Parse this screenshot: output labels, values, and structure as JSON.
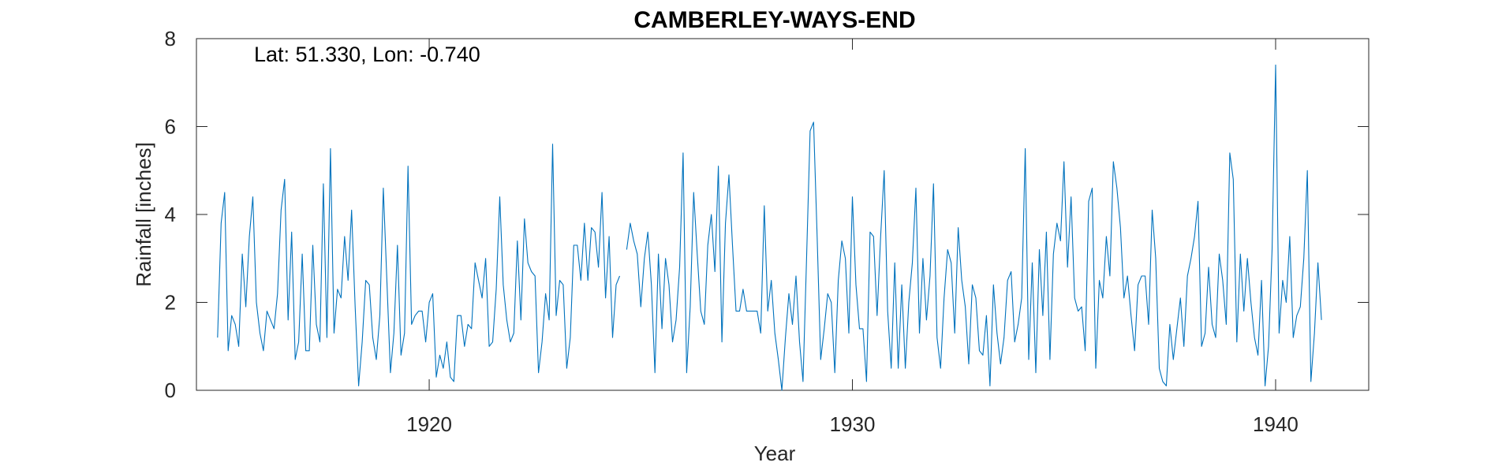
{
  "chart_data": {
    "type": "line",
    "title": "CAMBERLEY-WAYS-END",
    "xlabel": "Year",
    "ylabel": "Rainfall [inches]",
    "annotation": "Lat: 51.330, Lon: -0.740",
    "xlim": [
      1914.5,
      1942.2
    ],
    "ylim": [
      0,
      8
    ],
    "xticks": [
      1920,
      1930,
      1940
    ],
    "yticks": [
      0,
      2,
      4,
      6,
      8
    ],
    "grid": false,
    "line_color": "#0072BD",
    "x_start_year": 1915,
    "x_step_months": 1,
    "series": [
      {
        "values": [
          1.2,
          3.8,
          4.5,
          0.9,
          1.7,
          1.5,
          1.0,
          3.1,
          1.9,
          3.5,
          4.4,
          2.0,
          1.3,
          0.9,
          1.8,
          1.6,
          1.4,
          2.2,
          4.1,
          4.8,
          1.6,
          3.6,
          0.7,
          1.1,
          3.1,
          0.9,
          0.9,
          3.3,
          1.5,
          1.1,
          4.7,
          1.2,
          5.5,
          1.3,
          2.3,
          2.1,
          3.5,
          2.5,
          4.1,
          1.9,
          0.1,
          1.1,
          2.5,
          2.4,
          1.2,
          0.7,
          1.7,
          4.6,
          2.5,
          0.4,
          1.3,
          3.3,
          0.8,
          1.3,
          5.1,
          1.5,
          1.7,
          1.8,
          1.8,
          1.1,
          2.0,
          2.2,
          0.3,
          0.8,
          0.5,
          1.1,
          0.3,
          0.2,
          1.7,
          1.7,
          1.0,
          1.5,
          1.4,
          2.9,
          2.5,
          2.1,
          3.0,
          1.0,
          1.1,
          2.3,
          4.4,
          2.4,
          1.6,
          1.1,
          1.3,
          3.4,
          1.6,
          3.9,
          2.9,
          2.7,
          2.6,
          0.4,
          1.1,
          2.2,
          1.6,
          5.6,
          1.7,
          2.5,
          2.4,
          0.5,
          1.2,
          3.3,
          3.3,
          2.5,
          3.8,
          2.5,
          3.7,
          3.6,
          2.8,
          4.5,
          2.1,
          3.5,
          1.2,
          2.4,
          2.6,
          null,
          3.2,
          3.8,
          3.4,
          3.1,
          1.9,
          3.0,
          3.6,
          2.4,
          0.4,
          3.1,
          1.4,
          3.0,
          2.4,
          1.1,
          1.6,
          2.8,
          5.4,
          0.4,
          1.9,
          4.5,
          3.1,
          1.8,
          1.5,
          3.3,
          4.0,
          2.7,
          5.1,
          1.1,
          3.8,
          4.9,
          3.3,
          1.8,
          1.8,
          2.3,
          1.8,
          1.8,
          1.8,
          1.8,
          1.3,
          4.2,
          1.8,
          2.5,
          1.3,
          0.7,
          0.0,
          1.2,
          2.2,
          1.5,
          2.6,
          1.1,
          0.2,
          3.0,
          5.9,
          6.1,
          3.5,
          0.7,
          1.4,
          2.2,
          2.0,
          0.4,
          2.5,
          3.4,
          3.0,
          1.3,
          4.4,
          2.4,
          1.4,
          1.4,
          0.2,
          3.6,
          3.5,
          1.7,
          3.5,
          5.0,
          1.8,
          0.5,
          2.9,
          0.5,
          2.4,
          0.5,
          2.0,
          2.9,
          4.6,
          1.3,
          3.0,
          1.6,
          2.6,
          4.7,
          1.2,
          0.5,
          2.1,
          3.2,
          2.9,
          1.3,
          3.7,
          2.5,
          1.9,
          0.6,
          2.4,
          2.1,
          0.9,
          0.8,
          1.7,
          0.1,
          2.4,
          1.3,
          0.6,
          1.2,
          2.5,
          2.7,
          1.1,
          1.5,
          2.1,
          5.5,
          0.7,
          2.9,
          0.4,
          3.2,
          1.7,
          3.6,
          0.7,
          3.1,
          3.8,
          3.4,
          5.2,
          2.8,
          4.4,
          2.1,
          1.8,
          1.9,
          0.9,
          4.3,
          4.6,
          0.5,
          2.5,
          2.1,
          3.5,
          2.6,
          5.2,
          4.6,
          3.7,
          2.1,
          2.6,
          1.7,
          0.9,
          2.4,
          2.6,
          2.6,
          1.5,
          4.1,
          3.0,
          0.5,
          0.2,
          0.1,
          1.5,
          0.7,
          1.4,
          2.1,
          1.0,
          2.6,
          3.0,
          3.5,
          4.3,
          1.0,
          1.3,
          2.8,
          1.5,
          1.2,
          3.1,
          2.5,
          1.5,
          5.4,
          4.8,
          1.1,
          3.1,
          1.8,
          3.0,
          2.0,
          1.2,
          0.8,
          2.5,
          0.1,
          1.0,
          3.2,
          7.4,
          1.3,
          2.5,
          2.0,
          3.5,
          1.2,
          1.7,
          1.9,
          3.0,
          5.0,
          0.2,
          1.3,
          2.9,
          1.6
        ]
      }
    ]
  }
}
